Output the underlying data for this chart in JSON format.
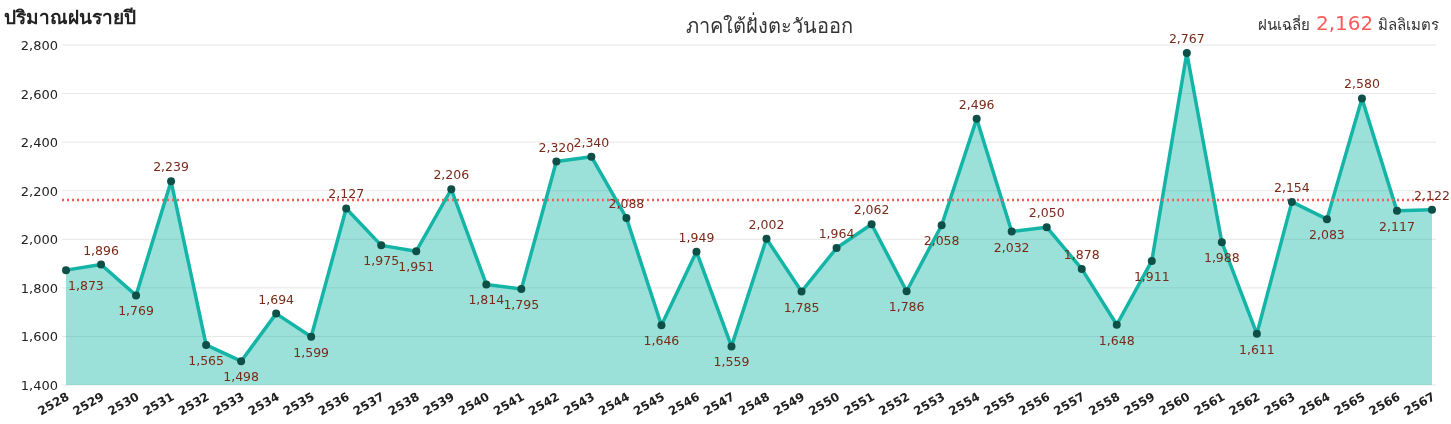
{
  "chart_data": {
    "type": "area",
    "title": "ปริมาณฝนรายปี",
    "subtitle": "ภาคใต้ฝั่งตะวันออก",
    "categories": [
      "2528",
      "2529",
      "2530",
      "2531",
      "2532",
      "2533",
      "2534",
      "2535",
      "2536",
      "2537",
      "2538",
      "2539",
      "2540",
      "2541",
      "2542",
      "2543",
      "2544",
      "2545",
      "2546",
      "2547",
      "2548",
      "2549",
      "2550",
      "2551",
      "2552",
      "2553",
      "2554",
      "2555",
      "2556",
      "2557",
      "2558",
      "2559",
      "2560",
      "2561",
      "2562",
      "2563",
      "2564",
      "2565",
      "2566",
      "2567"
    ],
    "series": [
      {
        "color": "#14b5a6",
        "value_labels": [
          "1,873",
          "1,896",
          "1,769",
          "2,239",
          "1,565",
          "1,498",
          "1,694",
          "1,599",
          "2,127",
          "1,975",
          "1,951",
          "2,206",
          "1,814",
          "1,795",
          "2,320",
          "2,340",
          "2,088",
          "1,646",
          "1,949",
          "1,559",
          "2,002",
          "1,785",
          "1,964",
          "2,062",
          "1,786",
          "2,058",
          "2,496",
          "2,032",
          "2,050",
          "1,878",
          "1,648",
          "1,911",
          "2,767",
          "1,988",
          "1,611",
          "2,154",
          "2,083",
          "2,580",
          "2,117",
          "2,122"
        ],
        "values": [
          1873,
          1896,
          1769,
          2239,
          1565,
          1498,
          1694,
          1599,
          2127,
          1975,
          1951,
          2206,
          1814,
          1795,
          2320,
          2340,
          2088,
          1646,
          1949,
          1559,
          2002,
          1785,
          1964,
          2062,
          1786,
          2058,
          2496,
          2032,
          2050,
          1878,
          1648,
          1911,
          2767,
          1988,
          1611,
          2154,
          2083,
          2580,
          2117,
          2122
        ]
      }
    ],
    "ylim": [
      1400,
      2800
    ],
    "yticks": [
      {
        "value": 1400,
        "label": "1,400"
      },
      {
        "value": 1600,
        "label": "1,600"
      },
      {
        "value": 1800,
        "label": "1,800"
      },
      {
        "value": 2000,
        "label": "2,000"
      },
      {
        "value": 2200,
        "label": "2,200"
      },
      {
        "value": 2400,
        "label": "2,400"
      },
      {
        "value": 2600,
        "label": "2,600"
      },
      {
        "value": 2800,
        "label": "2,800"
      }
    ],
    "ref_lines": [
      {
        "axis": "y",
        "value": 2162,
        "color": "#ff5a5a",
        "line_style": "dotted"
      }
    ],
    "annotations": [
      "ฝนเฉลี่ย 2,162 มิลลิเมตร"
    ],
    "grid": "y",
    "marker": "circle"
  }
}
